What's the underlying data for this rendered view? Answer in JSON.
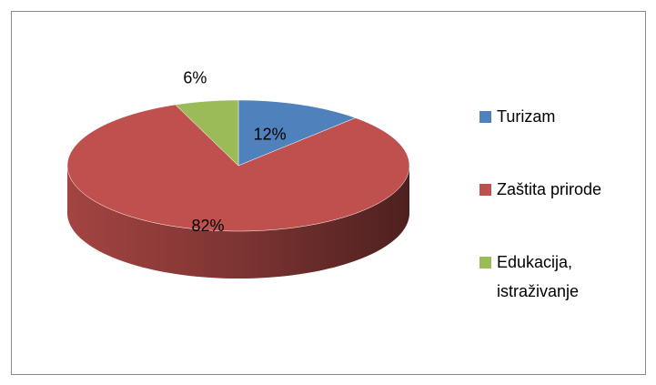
{
  "chart_data": {
    "type": "pie",
    "categories": [
      "Turizam",
      "Zaštita prirode",
      "Edukacija, istraživanje"
    ],
    "values": [
      12,
      82,
      6
    ],
    "value_labels": [
      "12%",
      "82%",
      "6%"
    ],
    "colors": [
      "#4f81bd",
      "#c0504d",
      "#9bbb59"
    ],
    "legend": "right"
  }
}
